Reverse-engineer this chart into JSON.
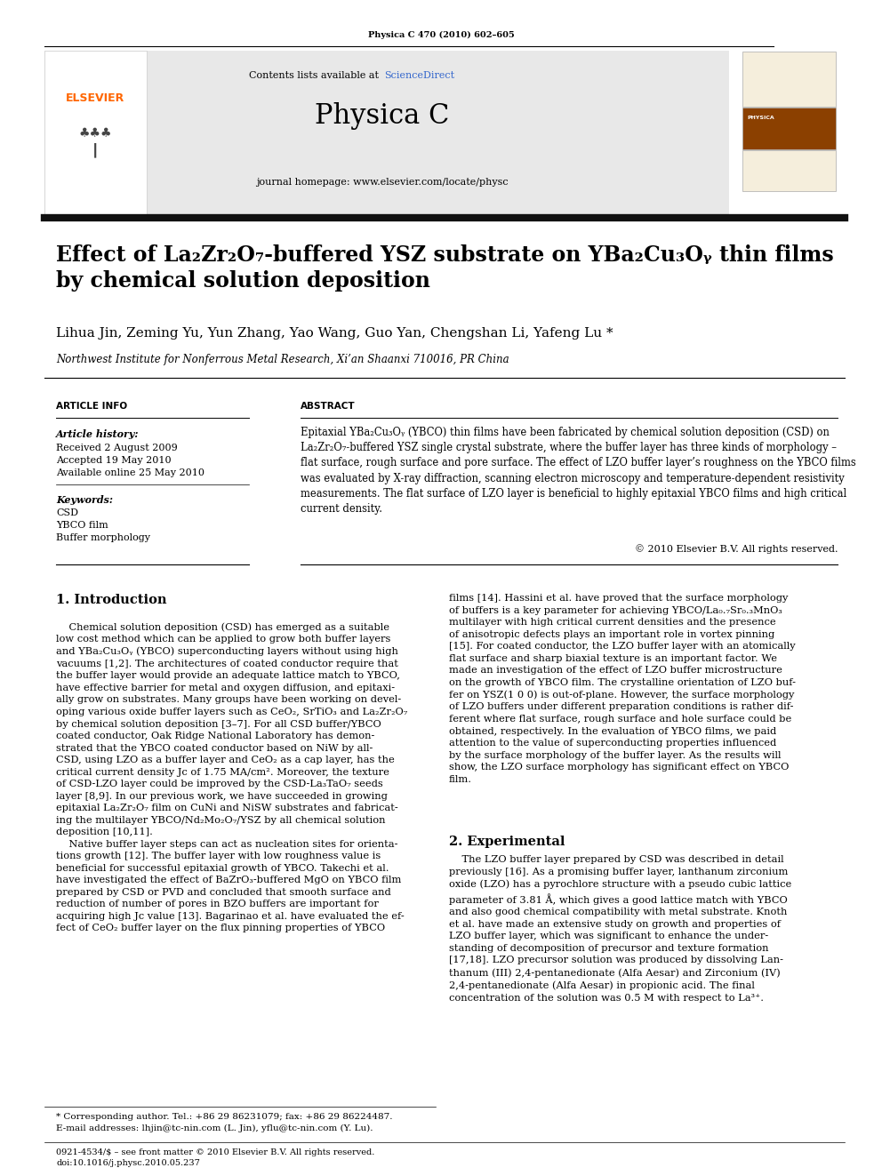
{
  "page_width": 9.92,
  "page_height": 13.23,
  "bg_color": "#ffffff",
  "journal_ref": "Physica C 470 (2010) 602–605",
  "journal_name": "Physica C",
  "journal_url": "journal homepage: www.elsevier.com/locate/physc",
  "sciencedirect_text": "Contents lists available at ",
  "sciencedirect_link": "ScienceDirect",
  "header_bg": "#e8e8e8",
  "dark_bar_color": "#1a1a1a",
  "elsevier_color": "#ff6600",
  "title": "Effect of La₂Zr₂O₇-buffered YSZ substrate on YBa₂Cu₃Oᵧ thin films\nby chemical solution deposition",
  "authors": "Lihua Jin, Zeming Yu, Yun Zhang, Yao Wang, Guo Yan, Chengshan Li, Yafeng Lu *",
  "affiliation": "Northwest Institute for Nonferrous Metal Research, Xi’an Shaanxi 710016, PR China",
  "article_info_label": "ARTICLE INFO",
  "abstract_label": "ABSTRACT",
  "article_history_label": "Article history:",
  "received": "Received 2 August 2009",
  "accepted": "Accepted 19 May 2010",
  "available": "Available online 25 May 2010",
  "keywords_label": "Keywords:",
  "keywords": [
    "CSD",
    "YBCO film",
    "Buffer morphology"
  ],
  "abstract_text": "Epitaxial YBa₂Cu₃Oᵧ (YBCO) thin films have been fabricated by chemical solution deposition (CSD) on\nLa₂Zr₂O₇-buffered YSZ single crystal substrate, where the buffer layer has three kinds of morphology –\nflat surface, rough surface and pore surface. The effect of LZO buffer layer’s roughness on the YBCO films\nwas evaluated by X-ray diffraction, scanning electron microscopy and temperature-dependent resistivity\nmeasurements. The flat surface of LZO layer is beneficial to highly epitaxial YBCO films and high critical\ncurrent density.",
  "copyright": "© 2010 Elsevier B.V. All rights reserved.",
  "intro_heading": "1. Introduction",
  "intro_col1": "    Chemical solution deposition (CSD) has emerged as a suitable\nlow cost method which can be applied to grow both buffer layers\nand YBa₂Cu₃Oᵧ (YBCO) superconducting layers without using high\nvacuums [1,2]. The architectures of coated conductor require that\nthe buffer layer would provide an adequate lattice match to YBCO,\nhave effective barrier for metal and oxygen diffusion, and epitaxi-\nally grow on substrates. Many groups have been working on devel-\noping various oxide buffer layers such as CeO₂, SrTiO₃ and La₂Zr₂O₇\nby chemical solution deposition [3–7]. For all CSD buffer/YBCO\ncoated conductor, Oak Ridge National Laboratory has demon-\nstrated that the YBCO coated conductor based on NiW by all-\nCSD, using LZO as a buffer layer and CeO₂ as a cap layer, has the\ncritical current density Jc of 1.75 MA/cm². Moreover, the texture\nof CSD-LZO layer could be improved by the CSD-La₃TaO₇ seeds\nlayer [8,9]. In our previous work, we have succeeded in growing\nepitaxial La₂Zr₂O₇ film on CuNi and NiSW substrates and fabricat-\ning the multilayer YBCO/Nd₂Mo₂O₇/YSZ by all chemical solution\ndeposition [10,11].\n    Native buffer layer steps can act as nucleation sites for orienta-\ntions growth [12]. The buffer layer with low roughness value is\nbeneficial for successful epitaxial growth of YBCO. Takechi et al.\nhave investigated the effect of BaZrO₃-buffered MgO on YBCO film\nprepared by CSD or PVD and concluded that smooth surface and\nreduction of number of pores in BZO buffers are important for\nacquiring high Jc value [13]. Bagarinao et al. have evaluated the ef-\nfect of CeO₂ buffer layer on the flux pinning properties of YBCO",
  "intro_col2_part1": "films [14]. Hassini et al. have proved that the surface morphology\nof buffers is a key parameter for achieving YBCO/La₀.₇Sr₀.₃MnO₃\nmultilayer with high critical current densities and the presence\nof anisotropic defects plays an important role in vortex pinning\n[15]. For coated conductor, the LZO buffer layer with an atomically\nflat surface and sharp biaxial texture is an important factor. We\nmade an investigation of the effect of LZO buffer microstructure\non the growth of YBCO film. The crystalline orientation of LZO buf-\nfer on YSZ(1 0 0) is out-of-plane. However, the surface morphology\nof LZO buffers under different preparation conditions is rather dif-\nferent where flat surface, rough surface and hole surface could be\nobtained, respectively. In the evaluation of YBCO films, we paid\nattention to the value of superconducting properties influenced\nby the surface morphology of the buffer layer. As the results will\nshow, the LZO surface morphology has significant effect on YBCO\nfilm.",
  "section2_heading": "2. Experimental",
  "section2_text": "    The LZO buffer layer prepared by CSD was described in detail\npreviously [16]. As a promising buffer layer, lanthanum zirconium\noxide (LZO) has a pyrochlore structure with a pseudo cubic lattice\nparameter of 3.81 Å, which gives a good lattice match with YBCO\nand also good chemical compatibility with metal substrate. Knoth\net al. have made an extensive study on growth and properties of\nLZO buffer layer, which was significant to enhance the under-\nstanding of decomposition of precursor and texture formation\n[17,18]. LZO precursor solution was produced by dissolving Lan-\nthanum (III) 2,4-pentanedionate (Alfa Aesar) and Zirconium (IV)\n2,4-pentanedionate (Alfa Aesar) in propionic acid. The final\nconcentration of the solution was 0.5 M with respect to La³⁺.",
  "footnote_star": "* Corresponding author. Tel.: +86 29 86231079; fax: +86 29 86224487.",
  "footnote_email": "E-mail addresses: lhjin@tc-nin.com (L. Jin), yflu@tc-nin.com (Y. Lu).",
  "footer_line1": "0921-4534/$ – see front matter © 2010 Elsevier B.V. All rights reserved.",
  "footer_line2": "doi:10.1016/j.physc.2010.05.237"
}
